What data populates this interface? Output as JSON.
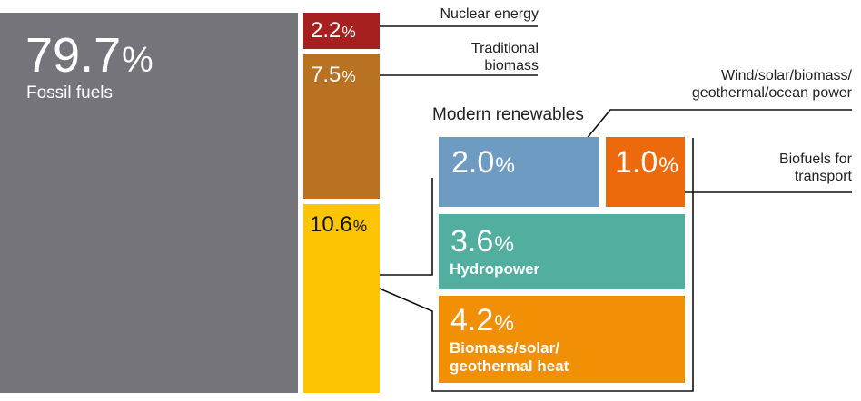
{
  "chart_data": {
    "type": "treemap",
    "title": "",
    "unit": "%",
    "segments": [
      {
        "id": "fossil",
        "label": "Fossil fuels",
        "value": 79.7,
        "value_text": "79.7",
        "color": "#76747b"
      },
      {
        "id": "nuclear",
        "label": "Nuclear energy",
        "value": 2.2,
        "value_text": "2.2",
        "color": "#a5201f"
      },
      {
        "id": "traditional",
        "label": "Traditional\nbiomass",
        "value": 7.5,
        "value_text": "7.5",
        "color": "#b87222"
      },
      {
        "id": "renewables",
        "label": "Modern renewables",
        "value": 10.6,
        "value_text": "10.6",
        "color": "#fdc403",
        "breakdown": [
          {
            "id": "wind",
            "label": "Wind/solar/biomass/\ngeothermal/ocean power",
            "value": 2.0,
            "value_text": "2.0",
            "color": "#6d9bc2"
          },
          {
            "id": "biofuels",
            "label": "Biofuels for\ntransport",
            "value": 1.0,
            "value_text": "1.0",
            "color": "#ec6a0c"
          },
          {
            "id": "hydro",
            "label": "Hydropower",
            "value": 3.6,
            "value_text": "3.6",
            "color": "#52ae9f"
          },
          {
            "id": "heat",
            "label": "Biomass/solar/\ngeothermal heat",
            "value": 4.2,
            "value_text": "4.2",
            "color": "#f18f05"
          }
        ]
      }
    ]
  }
}
